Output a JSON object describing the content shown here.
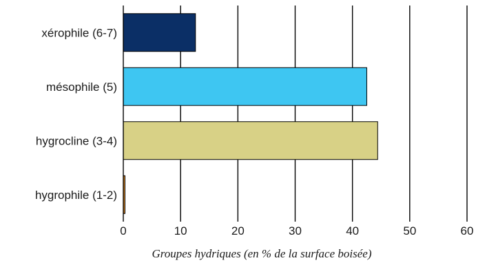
{
  "chart_data": {
    "type": "bar",
    "orientation": "horizontal",
    "categories": [
      "xérophile (6-7)",
      "mésophile (5)",
      "hygrocline (3-4)",
      "hygrophile (1-2)"
    ],
    "values": [
      12.6,
      42.5,
      44.4,
      0.3
    ],
    "colors": [
      "#0b2f66",
      "#3ec6f2",
      "#d8d186",
      "#d9882a"
    ],
    "xlim": [
      0,
      60
    ],
    "xticks": [
      "0",
      "10",
      "20",
      "30",
      "40",
      "50",
      "60"
    ],
    "xlabel": "Groupes hydriques (en % de la surface boisée)",
    "ylabel": "",
    "title": "",
    "grid": "vertical"
  }
}
